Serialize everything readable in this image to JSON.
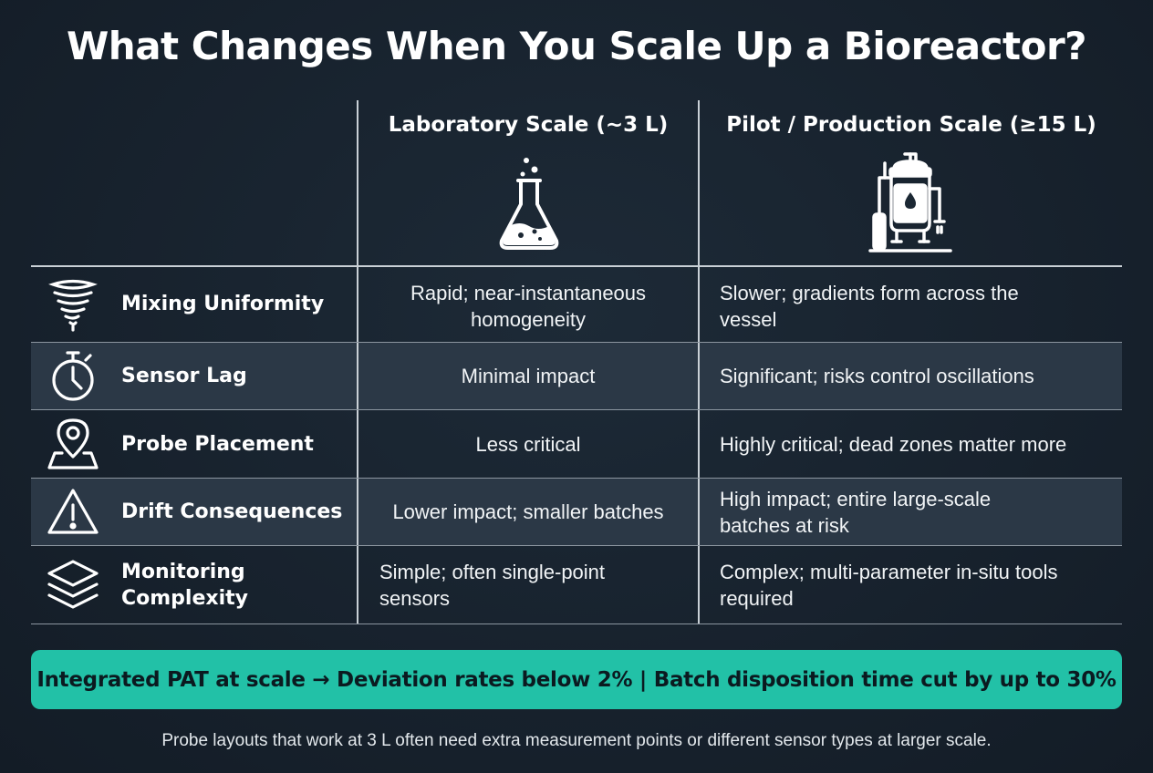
{
  "title": "What Changes When You Scale Up a Bioreactor?",
  "columns": {
    "lab": {
      "label": "Laboratory Scale (~3 L)",
      "icon": "flask-icon"
    },
    "pilot": {
      "label": "Pilot / Production Scale (≥15 L)",
      "icon": "bioreactor-vessel-icon"
    }
  },
  "rows": [
    {
      "label": "Mixing Uniformity",
      "icon": "vortex-icon",
      "lab": "Rapid; near-instantaneous\nhomogeneity",
      "pilot": "Slower; gradients form across the\nvessel"
    },
    {
      "label": "Sensor Lag",
      "icon": "stopwatch-icon",
      "lab": "Minimal impact",
      "pilot": "Significant; risks control oscillations"
    },
    {
      "label": "Probe Placement",
      "icon": "map-pin-icon",
      "lab": "Less critical",
      "pilot": "Highly critical; dead zones matter more"
    },
    {
      "label": "Drift Consequences",
      "icon": "warning-icon",
      "lab": "Lower impact; smaller batches",
      "pilot": "High impact; entire large-scale\nbatches at risk"
    },
    {
      "label": "Monitoring\nComplexity",
      "icon": "layers-icon",
      "lab": "Simple; often single-point\nsensors",
      "pilot": "Complex; multi-parameter in-situ tools\nrequired"
    }
  ],
  "banner": "Integrated PAT at scale → Deviation rates below 2% | Batch disposition time cut by up to 30%",
  "footer": "Probe layouts that work at 3 L often need extra measurement points or different sensor types at larger scale.",
  "colors": {
    "background": "#17222e",
    "accent": "#22c1a7",
    "row_shade": "#2b3846"
  }
}
